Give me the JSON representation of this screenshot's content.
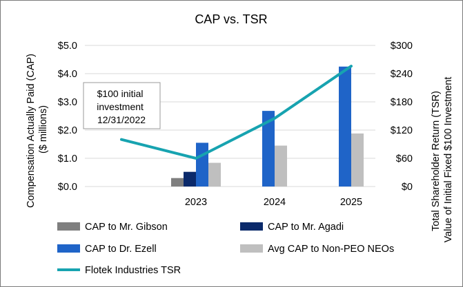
{
  "chart_data": {
    "type": "bar",
    "title": "CAP vs. TSR",
    "categories": [
      "",
      "2023",
      "2024",
      "2025"
    ],
    "ylabel_lines": [
      "Compensation Actually Paid (CAP)",
      "($ millions)"
    ],
    "y2label_lines": [
      "Total Shareholder Return (TSR)",
      "Value of Initial Fixed $100 Investment"
    ],
    "ylim": [
      0,
      5
    ],
    "y2lim": [
      0,
      300
    ],
    "y_ticks": [
      "$0.0",
      "$1.0",
      "$2.0",
      "$3.0",
      "$4.0",
      "$5.0"
    ],
    "y2_ticks": [
      "$0",
      "$60",
      "$120",
      "$180",
      "$240",
      "$300"
    ],
    "y_tick_values": [
      0,
      1,
      2,
      3,
      4,
      5
    ],
    "y2_tick_values": [
      0,
      60,
      120,
      180,
      240,
      300
    ],
    "series": [
      {
        "name": "CAP to Mr. Gibson",
        "kind": "bar",
        "color": "#7f7f7f",
        "values": [
          null,
          0.3,
          null,
          null
        ]
      },
      {
        "name": "CAP to Mr. Agadi",
        "kind": "bar",
        "color": "#0b2a6b",
        "values": [
          null,
          0.52,
          null,
          null
        ]
      },
      {
        "name": "CAP to Dr. Ezell",
        "kind": "bar",
        "color": "#1f64c8",
        "values": [
          null,
          1.55,
          2.68,
          4.25
        ]
      },
      {
        "name": "Avg CAP to Non-PEO NEOs",
        "kind": "bar",
        "color": "#bfbfbf",
        "values": [
          null,
          0.84,
          1.45,
          1.88
        ]
      },
      {
        "name": "Flotek Industries TSR",
        "kind": "line",
        "axis": "secondary",
        "color": "#17a3b0",
        "values": [
          100,
          60,
          145,
          256
        ]
      }
    ],
    "annotation": {
      "lines": [
        "$100 initial",
        "investment",
        "12/31/2022"
      ]
    }
  }
}
